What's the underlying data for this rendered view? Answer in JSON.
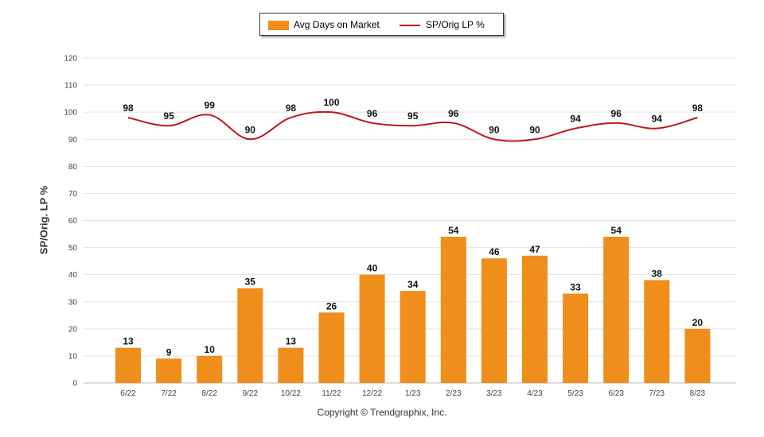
{
  "chart_data": {
    "type": "bar+line",
    "categories": [
      "6/22",
      "7/22",
      "8/22",
      "9/22",
      "10/22",
      "11/22",
      "12/22",
      "1/23",
      "2/23",
      "3/23",
      "4/23",
      "5/23",
      "6/23",
      "7/23",
      "8/23"
    ],
    "series": [
      {
        "name": "Avg Days on Market",
        "type": "bar",
        "color": "#ef8e1a",
        "values": [
          13,
          9,
          10,
          35,
          13,
          26,
          40,
          34,
          54,
          46,
          47,
          33,
          54,
          38,
          20
        ]
      },
      {
        "name": "SP/Orig LP %",
        "type": "line",
        "color": "#c0161b",
        "values": [
          98,
          95,
          99,
          90,
          98,
          100,
          96,
          95,
          96,
          90,
          90,
          94,
          96,
          94,
          98
        ]
      }
    ],
    "ylabel": "SP/Orig. LP %",
    "ylim": [
      0,
      120
    ],
    "yticks": [
      0,
      10,
      20,
      30,
      40,
      50,
      60,
      70,
      80,
      90,
      100,
      110,
      120
    ],
    "grid": true,
    "legend": "top-center"
  },
  "copyright": "Copyright © Trendgraphix, Inc."
}
